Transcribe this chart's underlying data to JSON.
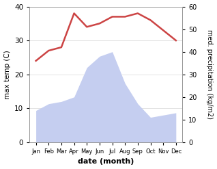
{
  "months": [
    "Jan",
    "Feb",
    "Mar",
    "Apr",
    "May",
    "Jun",
    "Jul",
    "Aug",
    "Sep",
    "Oct",
    "Nov",
    "Dec"
  ],
  "temperature": [
    24,
    27,
    28,
    38,
    34,
    35,
    37,
    37,
    38,
    36,
    33,
    30
  ],
  "precipitation": [
    14,
    17,
    18,
    20,
    33,
    38,
    40,
    26,
    17,
    11,
    12,
    13
  ],
  "temp_color": "#cc4444",
  "precip_color": "#c5cef0",
  "left_ylabel": "max temp (C)",
  "right_ylabel": "med. precipitation (kg/m2)",
  "xlabel": "date (month)",
  "ylim_left": [
    0,
    40
  ],
  "ylim_right": [
    0,
    60
  ],
  "yticks_left": [
    0,
    10,
    20,
    30,
    40
  ],
  "yticks_right": [
    0,
    10,
    20,
    30,
    40,
    50,
    60
  ],
  "background_color": "#ffffff",
  "grid_color": "#dddddd",
  "precip_scale_factor": 0.6667
}
